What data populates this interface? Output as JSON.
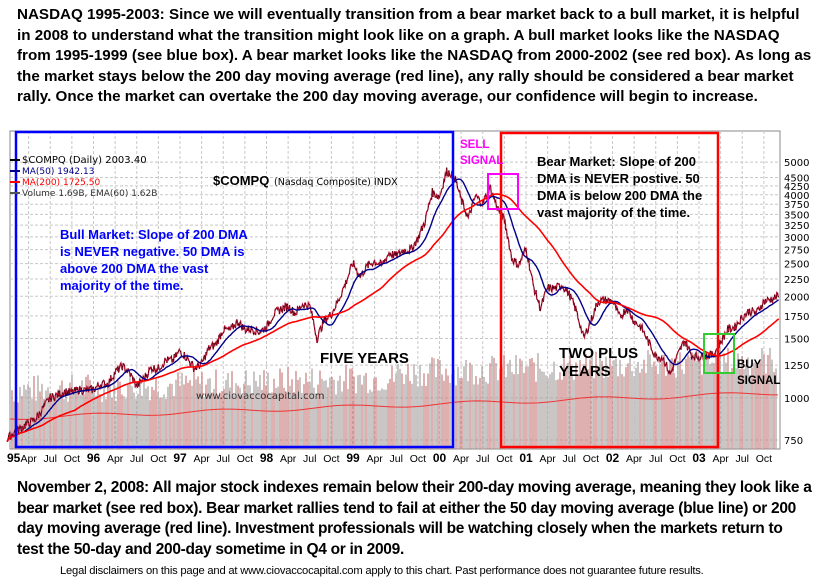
{
  "header_text": "NASDAQ 1995-2003:   Since we will eventually transition from a bear market back to a bull market, it is helpful in 2008 to understand what the transition might look like on a graph.  A bull market looks like the NASDAQ from 1995-1999 (see blue box).  A bear market looks like the NASDAQ from 2000-2002 (see red box).  As long as the market stays below the 200 day moving average (red line), any rally should be considered a bear market rally.  Once the market can overtake the 200 day moving average, our confidence will begin to increase.",
  "footer_text": "November 2, 2008:  All major stock indexes remain below their 200-day moving average, meaning they look like a bear market (see red box).  Bear market rallies tend to fail at either the 50 day moving average (blue line) or 200 day moving average (red line).   Investment professionals will be watching closely when the markets return to test the 50-day and 200-day sometime in Q4 or in 2009.",
  "disclaimer": "Legal disclaimers on this page and at www.ciovaccocapital.com apply to this chart.  Past performance does not guarantee future results.",
  "chart_data": {
    "type": "line",
    "title": "$COMPQ",
    "subtitle": "(Nasdaq Composite) INDX",
    "y_scale": "log",
    "ylim": [
      700,
      5300
    ],
    "y_ticks": [
      750,
      1000,
      1250,
      1500,
      1750,
      2000,
      2250,
      2500,
      2750,
      3000,
      3250,
      3500,
      3750,
      4000,
      4250,
      4500,
      5000
    ],
    "x_tick_labels": [
      "95",
      "Apr",
      "Jul",
      "Oct",
      "96",
      "Apr",
      "Jul",
      "Oct",
      "97",
      "Apr",
      "Jul",
      "Oct",
      "98",
      "Apr",
      "Jul",
      "Oct",
      "99",
      "Apr",
      "Jul",
      "Oct",
      "00",
      "Apr",
      "Jul",
      "Oct",
      "01",
      "Apr",
      "Jul",
      "Oct",
      "02",
      "Apr",
      "Jul",
      "Oct",
      "03",
      "Apr",
      "Jul",
      "Oct"
    ],
    "grid": true,
    "legend_placement": "top-left",
    "legend": [
      {
        "label": "$COMPQ (Daily) 2003.40",
        "color": "#000000"
      },
      {
        "label": "MA(50) 1942.13",
        "color": "#00008b"
      },
      {
        "label": "MA(200) 1725.50",
        "color": "#ff0000"
      },
      {
        "label": "Volume 1.69B, EMA(60) 1.62B",
        "color": "#555555"
      }
    ],
    "x_start": "1995-01",
    "x_step": "month",
    "series": [
      {
        "name": "$COMPQ",
        "color": "#000000",
        "values": [
          755,
          793,
          817,
          843,
          865,
          933,
          1001,
          1020,
          1044,
          1036,
          1059,
          1052,
          1059,
          1100,
          1101,
          1191,
          1243,
          1185,
          1081,
          1142,
          1227,
          1222,
          1293,
          1291,
          1380,
          1309,
          1222,
          1261,
          1400,
          1443,
          1594,
          1587,
          1686,
          1594,
          1601,
          1570,
          1619,
          1771,
          1835,
          1868,
          1779,
          1895,
          1872,
          1499,
          1694,
          1771,
          1950,
          2193,
          2506,
          2288,
          2461,
          2542,
          2471,
          2686,
          2638,
          2739,
          2746,
          2966,
          3336,
          4069,
          3940,
          4697,
          4573,
          3861,
          3401,
          3966,
          3767,
          4206,
          3673,
          3370,
          2598,
          2471,
          2773,
          2152,
          1840,
          2116,
          2110,
          2161,
          2027,
          1805,
          1499,
          1690,
          1931,
          1950,
          1934,
          1731,
          1845,
          1688,
          1616,
          1463,
          1328,
          1315,
          1172,
          1330,
          1479,
          1336,
          1321,
          1338,
          1341,
          1464,
          1596,
          1623,
          1735,
          1810,
          1787,
          1932,
          1960,
          2003
        ]
      },
      {
        "name": "MA(50)",
        "color": "#00008b"
      },
      {
        "name": "MA(200)",
        "color": "#ff0000"
      }
    ],
    "annotations": {
      "bull": "Bull Market:  Slope of 200 DMA is NEVER negative.  50 DMA is above 200 DMA the vast majority of the time.",
      "bear": "Bear Market:  Slope of 200 DMA is NEVER postive. 50 DMA is below 200 DMA the vast majority of the time.",
      "sell": "SELL SIGNAL",
      "buy": "BUY SIGNAL",
      "five_years": "FIVE YEARS",
      "two_plus": "TWO PLUS YEARS",
      "watermark": "www.ciovaccocapital.com"
    },
    "colors": {
      "bull_box": "#0000ff",
      "bear_box": "#ff0000",
      "sell_box": "#ff00ff",
      "buy_box": "#33cc33",
      "bull_text": "#0000ff",
      "sell_text": "#ff00ff"
    }
  }
}
